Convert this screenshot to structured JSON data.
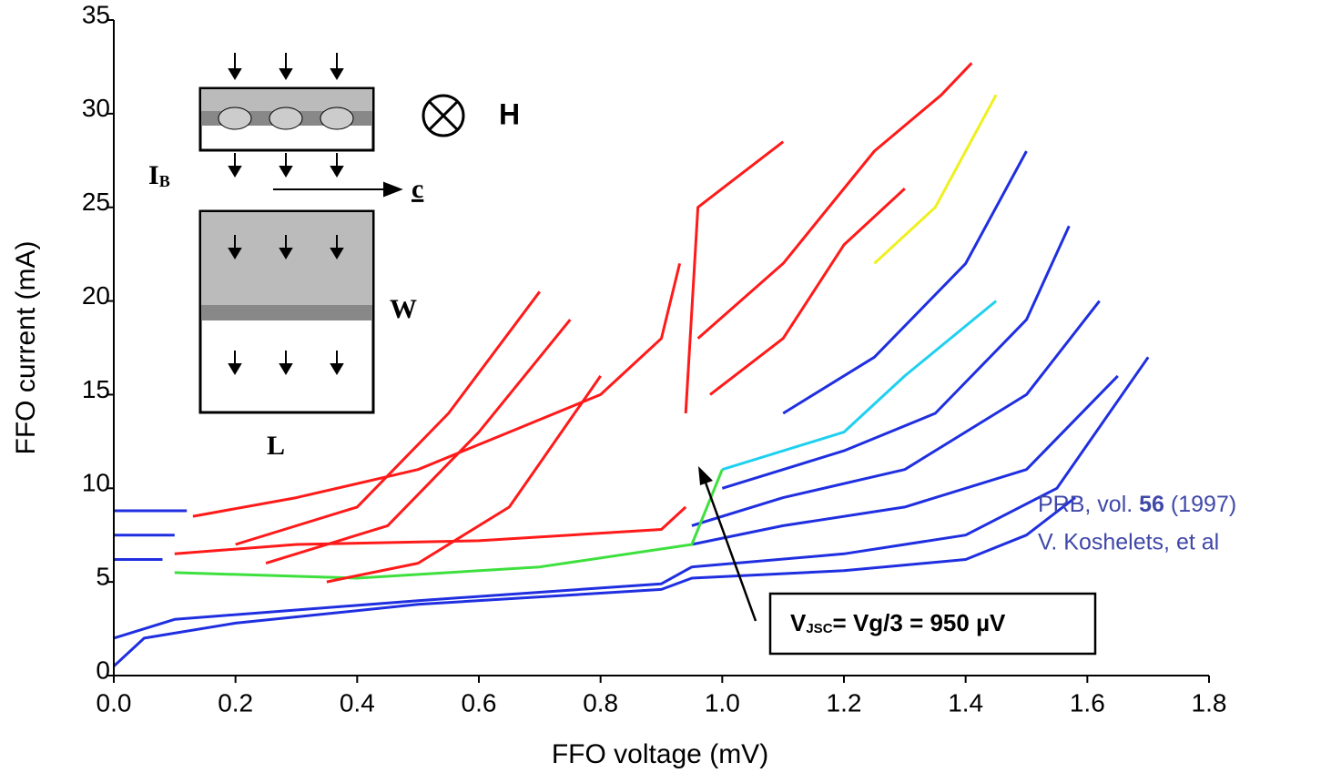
{
  "chart_data": {
    "type": "line",
    "x_label": "FFO voltage (mV)",
    "y_label": "FFO current (mA)",
    "xlim": [
      0,
      1.8
    ],
    "xticks": [
      {
        "value": 0,
        "label": "0.0"
      },
      0.2,
      0.4,
      0.6,
      0.8,
      {
        "value": 1,
        "label": "1.0"
      },
      1.2,
      1.4,
      1.6,
      1.8
    ],
    "ylim": [
      0,
      35
    ],
    "yticks": [
      0,
      5,
      10,
      15,
      20,
      25,
      30,
      35
    ],
    "series": [
      {
        "color": "#1f2fe0",
        "x": [
          0,
          0.05,
          0.2,
          0.5,
          0.9,
          0.95,
          1.2,
          1.4,
          1.5,
          1.58
        ],
        "values": [
          0.5,
          2,
          2.8,
          3.8,
          4.6,
          5.2,
          5.6,
          6.2,
          7.5,
          9.5
        ]
      },
      {
        "color": "#1f2fe0",
        "x": [
          0,
          0.1,
          0.5,
          0.9,
          0.95,
          1.2,
          1.4,
          1.55,
          1.7
        ],
        "values": [
          2,
          3,
          4,
          4.9,
          5.8,
          6.5,
          7.5,
          10,
          17
        ]
      },
      {
        "color": "#1f2fe0",
        "x": [
          0.95,
          1.1,
          1.3,
          1.5,
          1.65
        ],
        "values": [
          7,
          8,
          9,
          11,
          16
        ]
      },
      {
        "color": "#1f2fe0",
        "x": [
          0.95,
          1.1,
          1.3,
          1.5,
          1.62
        ],
        "values": [
          8,
          9.5,
          11,
          15,
          20
        ]
      },
      {
        "color": "#1f2fe0",
        "x": [
          1,
          1.2,
          1.35,
          1.5,
          1.57
        ],
        "values": [
          10,
          12,
          14,
          19,
          24
        ]
      },
      {
        "color": "#1f2fe0",
        "x": [
          1.1,
          1.25,
          1.4,
          1.5
        ],
        "values": [
          14,
          17,
          22,
          28
        ]
      },
      {
        "color": "#1f2fe0",
        "x": [
          0,
          0.12
        ],
        "values": [
          8.8,
          8.8
        ]
      },
      {
        "color": "#1f2fe0",
        "x": [
          0,
          0.1
        ],
        "values": [
          7.5,
          7.5
        ]
      },
      {
        "color": "#1f2fe0",
        "x": [
          0,
          0.08
        ],
        "values": [
          6.2,
          6.2
        ]
      },
      {
        "color": "#20d0f0",
        "x": [
          1,
          1.2,
          1.3,
          1.45
        ],
        "values": [
          11,
          13,
          16,
          20
        ]
      },
      {
        "color": "#3ee03e",
        "x": [
          0.1,
          0.4,
          0.7,
          0.95,
          1
        ],
        "values": [
          5.5,
          5.2,
          5.8,
          7,
          11
        ]
      },
      {
        "color": "#f0f020",
        "x": [
          1.25,
          1.35,
          1.4,
          1.45
        ],
        "values": [
          22,
          25,
          28,
          31
        ]
      },
      {
        "color": "#ff1a1a",
        "x": [
          0.13,
          0.3,
          0.5,
          0.65,
          0.8,
          0.9,
          0.93
        ],
        "values": [
          8.5,
          9.5,
          11,
          13,
          15,
          18,
          22
        ]
      },
      {
        "color": "#ff1a1a",
        "x": [
          0.2,
          0.4,
          0.55,
          0.7
        ],
        "values": [
          7,
          9,
          14,
          20.5
        ]
      },
      {
        "color": "#ff1a1a",
        "x": [
          0.25,
          0.45,
          0.6,
          0.75
        ],
        "values": [
          6,
          8,
          13,
          19
        ]
      },
      {
        "color": "#ff1a1a",
        "x": [
          0.35,
          0.5,
          0.65,
          0.8
        ],
        "values": [
          5,
          6,
          9,
          16
        ]
      },
      {
        "color": "#ff1a1a",
        "x": [
          0.1,
          0.3,
          0.6,
          0.9,
          0.94
        ],
        "values": [
          6.5,
          7,
          7.2,
          7.8,
          9
        ]
      },
      {
        "color": "#ff1a1a",
        "x": [
          0.94,
          0.96,
          1,
          1.1
        ],
        "values": [
          14,
          25,
          26,
          28.5
        ]
      },
      {
        "color": "#ff1a1a",
        "x": [
          0.96,
          1.1,
          1.25,
          1.36,
          1.41
        ],
        "values": [
          18,
          22,
          28,
          31,
          32.7
        ]
      },
      {
        "color": "#ff1a1a",
        "x": [
          0.98,
          1.1,
          1.2,
          1.3
        ],
        "values": [
          15,
          18,
          23,
          26
        ]
      }
    ],
    "annotation": {
      "main": "V",
      "sub": "JSC",
      "rest": "= Vg/3 = 950 µV"
    },
    "reference": {
      "line1_a": "PRB, vol. ",
      "line1_bold": "56",
      "line1_b": " (1997)",
      "line2": "V. Koshelets, et al"
    },
    "inset": {
      "field": "H",
      "current": "I",
      "current_sub": "B",
      "axis": "c",
      "width": "W",
      "length": "L"
    }
  }
}
